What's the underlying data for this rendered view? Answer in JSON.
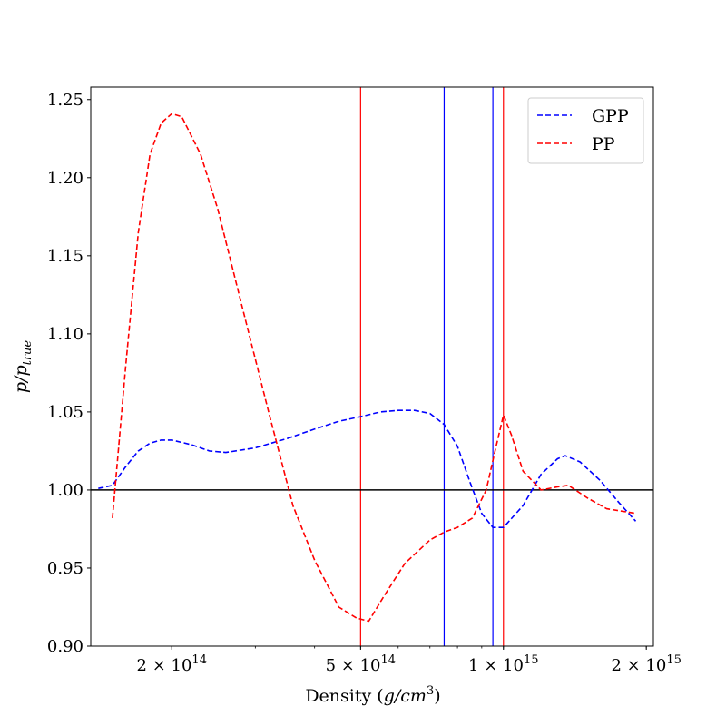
{
  "chart_data": {
    "type": "line",
    "title": "",
    "x_scale": "log",
    "xlim": [
      135000000000000.0,
      2070000000000000.0
    ],
    "ylim": [
      0.9,
      1.258
    ],
    "xlabel": {
      "main": "Density (",
      "var_g": "g",
      "slash": "/",
      "var_cm": "cm",
      "sup": "3",
      "close": ")"
    },
    "ylabel": {
      "main": "p",
      "slash": "/",
      "sub_main": "p",
      "sub": "true"
    },
    "x_ticks": [
      {
        "value": 200000000000000.0,
        "base": "2 × 10",
        "exp": "14"
      },
      {
        "value": 500000000000000.0,
        "base": "5 × 10",
        "exp": "14"
      },
      {
        "value": 1000000000000000.0,
        "base": "1 × 10",
        "exp": "15"
      },
      {
        "value": 2000000000000000.0,
        "base": "2 × 10",
        "exp": "15"
      }
    ],
    "y_ticks": [
      "0.90",
      "0.95",
      "1.00",
      "1.05",
      "1.10",
      "1.15",
      "1.20",
      "1.25"
    ],
    "reference_line": {
      "y": 1.0,
      "color": "#000000"
    },
    "vertical_lines": [
      {
        "x": 500000000000000.0,
        "color": "#ff0000"
      },
      {
        "x": 750000000000000.0,
        "color": "#0000ff"
      },
      {
        "x": 950000000000000.0,
        "color": "#0000ff"
      },
      {
        "x": 1000000000000000.0,
        "color": "#ff0000"
      }
    ],
    "legend": {
      "position": "top-right"
    },
    "series": [
      {
        "name": "GPP",
        "color": "#0000ff",
        "style": "dashed",
        "points": [
          [
            140000000000000.0,
            1.001
          ],
          [
            150000000000000.0,
            1.003
          ],
          [
            160000000000000.0,
            1.015
          ],
          [
            170000000000000.0,
            1.025
          ],
          [
            180000000000000.0,
            1.03
          ],
          [
            190000000000000.0,
            1.032
          ],
          [
            200000000000000.0,
            1.032
          ],
          [
            220000000000000.0,
            1.029
          ],
          [
            240000000000000.0,
            1.025
          ],
          [
            260000000000000.0,
            1.024
          ],
          [
            300000000000000.0,
            1.027
          ],
          [
            350000000000000.0,
            1.033
          ],
          [
            400000000000000.0,
            1.039
          ],
          [
            450000000000000.0,
            1.044
          ],
          [
            500000000000000.0,
            1.047
          ],
          [
            550000000000000.0,
            1.05
          ],
          [
            600000000000000.0,
            1.051
          ],
          [
            650000000000000.0,
            1.051
          ],
          [
            700000000000000.0,
            1.049
          ],
          [
            750000000000000.0,
            1.042
          ],
          [
            800000000000000.0,
            1.028
          ],
          [
            850000000000000.0,
            1.005
          ],
          [
            900000000000000.0,
            0.985
          ],
          [
            950000000000000.0,
            0.976
          ],
          [
            1000000000000000.0,
            0.976
          ],
          [
            1100000000000000.0,
            0.99
          ],
          [
            1200000000000000.0,
            1.01
          ],
          [
            1300000000000000.0,
            1.02
          ],
          [
            1350000000000000.0,
            1.022
          ],
          [
            1450000000000000.0,
            1.018
          ],
          [
            1600000000000000.0,
            1.006
          ],
          [
            1750000000000000.0,
            0.992
          ],
          [
            1900000000000000.0,
            0.98
          ]
        ]
      },
      {
        "name": "PP",
        "color": "#ff0000",
        "style": "dashed",
        "points": [
          [
            150000000000000.0,
            0.982
          ],
          [
            160000000000000.0,
            1.08
          ],
          [
            170000000000000.0,
            1.165
          ],
          [
            180000000000000.0,
            1.215
          ],
          [
            190000000000000.0,
            1.235
          ],
          [
            200000000000000.0,
            1.241
          ],
          [
            210000000000000.0,
            1.239
          ],
          [
            230000000000000.0,
            1.215
          ],
          [
            250000000000000.0,
            1.18
          ],
          [
            280000000000000.0,
            1.12
          ],
          [
            320000000000000.0,
            1.05
          ],
          [
            360000000000000.0,
            0.99
          ],
          [
            400000000000000.0,
            0.955
          ],
          [
            450000000000000.0,
            0.925
          ],
          [
            490000000000000.0,
            0.918
          ],
          [
            520000000000000.0,
            0.916
          ],
          [
            560000000000000.0,
            0.932
          ],
          [
            620000000000000.0,
            0.953
          ],
          [
            700000000000000.0,
            0.968
          ],
          [
            750000000000000.0,
            0.973
          ],
          [
            800000000000000.0,
            0.976
          ],
          [
            860000000000000.0,
            0.982
          ],
          [
            920000000000000.0,
            1.0
          ],
          [
            960000000000000.0,
            1.025
          ],
          [
            1000000000000000.0,
            1.048
          ],
          [
            1040000000000000.0,
            1.035
          ],
          [
            1100000000000000.0,
            1.012
          ],
          [
            1200000000000000.0,
            1.0
          ],
          [
            1300000000000000.0,
            1.002
          ],
          [
            1370000000000000.0,
            1.003
          ],
          [
            1500000000000000.0,
            0.995
          ],
          [
            1650000000000000.0,
            0.988
          ],
          [
            1900000000000000.0,
            0.985
          ]
        ]
      }
    ]
  }
}
